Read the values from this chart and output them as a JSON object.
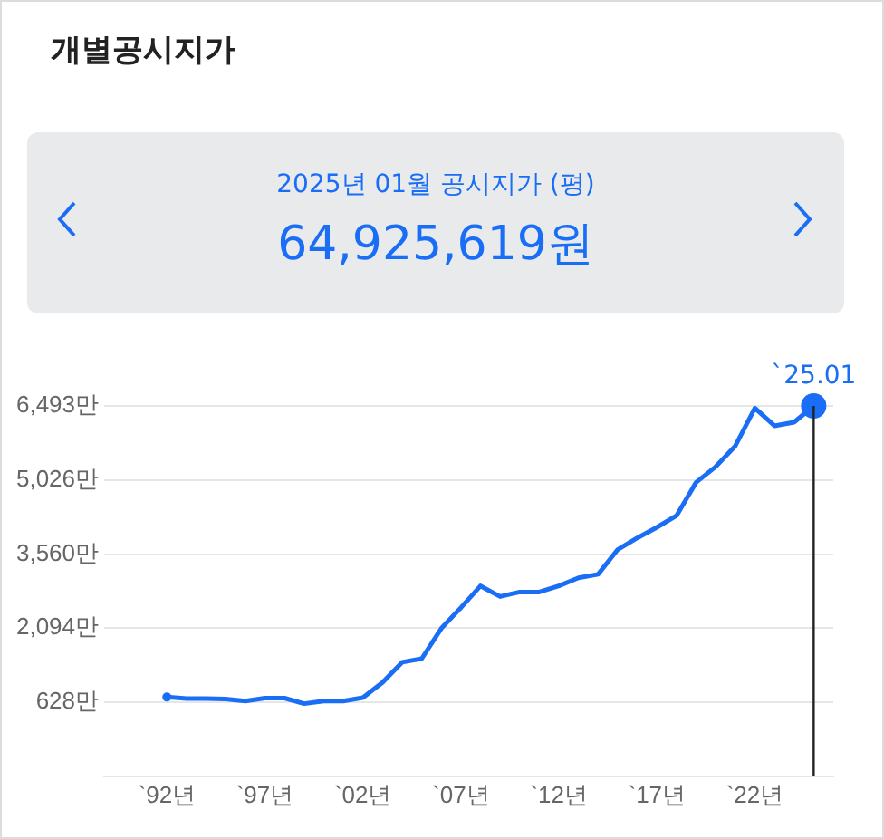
{
  "chart_data": {
    "type": "line",
    "title": "개별공시지가",
    "subtitle": "2025년 01월 공시지가 (평)",
    "annotations": [
      "64,925,619원",
      {
        "text": "`25.01",
        "y": 6493
      }
    ],
    "categories": [
      "`92년",
      null,
      null,
      null,
      null,
      "`97년",
      null,
      null,
      null,
      null,
      "`02년",
      null,
      null,
      null,
      null,
      "`07년",
      null,
      null,
      null,
      null,
      "`12년",
      null,
      null,
      null,
      null,
      "`17년",
      null,
      null,
      null,
      null,
      "`22년",
      null,
      null,
      null
    ],
    "series": [
      {
        "color": "#1a6ef5",
        "values": [
          730,
          700,
          700,
          690,
          650,
          710,
          710,
          600,
          650,
          650,
          720,
          1020,
          1420,
          1490,
          2090,
          2500,
          2930,
          2720,
          2810,
          2810,
          2930,
          3090,
          3160,
          3650,
          3880,
          4090,
          4320,
          4980,
          5290,
          5700,
          6450,
          6100,
          6170,
          6493
        ]
      }
    ],
    "ylim": [
      -838,
      6493
    ],
    "yticks": [
      {
        "value": 628,
        "label": "628만"
      },
      {
        "value": 2094,
        "label": "2,094만"
      },
      {
        "value": 3560,
        "label": "3,560만"
      },
      {
        "value": 5026,
        "label": "5,026만"
      },
      {
        "value": 6493,
        "label": "6,493만"
      }
    ],
    "grid": "y",
    "legend": false
  }
}
